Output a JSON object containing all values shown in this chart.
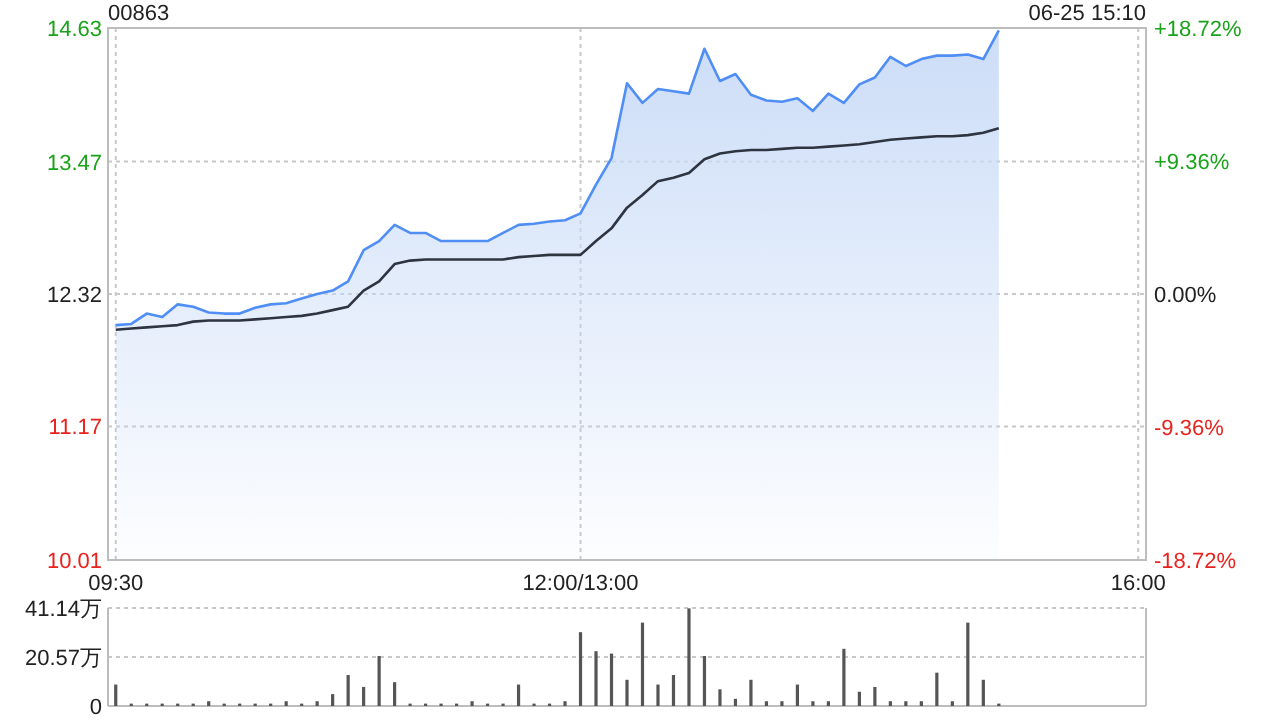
{
  "chart_data": [
    {
      "type": "line",
      "title": "00863",
      "annotations": [
        "06-25 15:10"
      ],
      "categories": [
        "09:30",
        null,
        null,
        null,
        null,
        null,
        null,
        null,
        null,
        null,
        null,
        null,
        null,
        null,
        null,
        null,
        null,
        null,
        null,
        null,
        null,
        null,
        null,
        null,
        null,
        null,
        null,
        null,
        null,
        null,
        "12:00/13:00",
        null,
        null,
        null,
        null,
        null,
        null,
        null,
        null,
        null,
        null,
        null,
        null,
        null,
        null,
        null,
        null,
        null,
        null,
        null,
        null,
        null,
        null,
        null,
        null,
        null,
        null,
        null,
        null,
        null,
        null,
        null,
        null,
        null,
        null,
        null,
        "16:00"
      ],
      "ylim": [
        10.01,
        14.63
      ],
      "yticks": [
        10.01,
        11.17,
        12.32,
        13.47,
        14.63
      ],
      "y2lim": [
        -18.72,
        18.72
      ],
      "y2ticks": [
        {
          "value": -18.72,
          "label": "-18.72%"
        },
        {
          "value": -9.36,
          "label": "-9.36%"
        },
        {
          "value": 0,
          "label": "0.00%"
        },
        {
          "value": 9.36,
          "label": "+9.36%"
        },
        {
          "value": 18.72,
          "label": "+18.72%"
        }
      ],
      "grid": true,
      "series": [
        {
          "type": "area",
          "color": "#4f8ef5",
          "values": [
            12.05,
            12.06,
            12.15,
            12.12,
            12.23,
            12.21,
            12.16,
            12.15,
            12.15,
            12.2,
            12.23,
            12.24,
            12.28,
            12.32,
            12.35,
            12.43,
            12.7,
            12.78,
            12.92,
            12.85,
            12.85,
            12.78,
            12.78,
            12.78,
            12.78,
            12.85,
            12.92,
            12.93,
            12.95,
            12.96,
            13.02,
            13.27,
            13.5,
            14.15,
            13.98,
            14.1,
            14.08,
            14.06,
            14.45,
            14.17,
            14.23,
            14.05,
            14.0,
            13.99,
            14.02,
            13.91,
            14.06,
            13.98,
            14.14,
            14.2,
            14.38,
            14.3,
            14.36,
            14.39,
            14.39,
            14.4,
            14.36,
            14.61,
            null,
            null,
            null,
            null,
            null,
            null,
            null,
            null,
            null
          ]
        },
        {
          "type": "line",
          "color": "#2e3440",
          "values": [
            12.01,
            12.02,
            12.03,
            12.04,
            12.05,
            12.08,
            12.09,
            12.09,
            12.09,
            12.1,
            12.11,
            12.12,
            12.13,
            12.15,
            12.18,
            12.21,
            12.35,
            12.43,
            12.58,
            12.61,
            12.62,
            12.62,
            12.62,
            12.62,
            12.62,
            12.62,
            12.64,
            12.65,
            12.66,
            12.66,
            12.66,
            12.78,
            12.89,
            13.07,
            13.18,
            13.3,
            13.33,
            13.37,
            13.49,
            13.54,
            13.56,
            13.57,
            13.57,
            13.58,
            13.59,
            13.59,
            13.6,
            13.61,
            13.62,
            13.64,
            13.66,
            13.67,
            13.68,
            13.69,
            13.69,
            13.7,
            13.72,
            13.76,
            null,
            null,
            null,
            null,
            null,
            null,
            null,
            null,
            null
          ]
        }
      ]
    },
    {
      "type": "bar",
      "tick_labels": "y",
      "grid": "y",
      "color": "#555555",
      "categories": [
        null,
        null,
        null,
        null,
        null,
        null,
        null,
        null,
        null,
        null,
        null,
        null,
        null,
        null,
        null,
        null,
        null,
        null,
        null,
        null,
        null,
        null,
        null,
        null,
        null,
        null,
        null,
        null,
        null,
        null,
        null,
        null,
        null,
        null,
        null,
        null,
        null,
        null,
        null,
        null,
        null,
        null,
        null,
        null,
        null,
        null,
        null,
        null,
        null,
        null,
        null,
        null,
        null,
        null,
        null,
        null,
        null,
        null,
        null,
        null,
        null,
        null,
        null,
        null,
        null,
        null,
        null
      ],
      "ylim": [
        0,
        41.14
      ],
      "yticks": [
        0,
        {
          "value": 20.57,
          "label": "20.57万"
        },
        {
          "value": 41.14,
          "label": "41.14万"
        }
      ],
      "values": [
        9,
        1,
        1,
        1,
        1,
        1,
        2,
        1,
        1,
        1,
        1,
        2,
        1,
        2,
        5,
        13,
        8,
        21,
        10,
        1,
        1,
        1,
        1,
        2,
        1,
        1,
        9,
        1,
        1,
        2,
        31,
        23,
        22,
        11,
        35,
        9,
        13,
        41,
        21,
        7,
        3,
        11,
        2,
        2,
        9,
        2,
        2,
        24,
        6,
        8,
        2,
        2,
        2,
        14,
        2,
        35,
        11,
        1,
        null,
        null,
        null,
        null,
        null,
        null,
        null,
        null,
        null
      ]
    }
  ]
}
